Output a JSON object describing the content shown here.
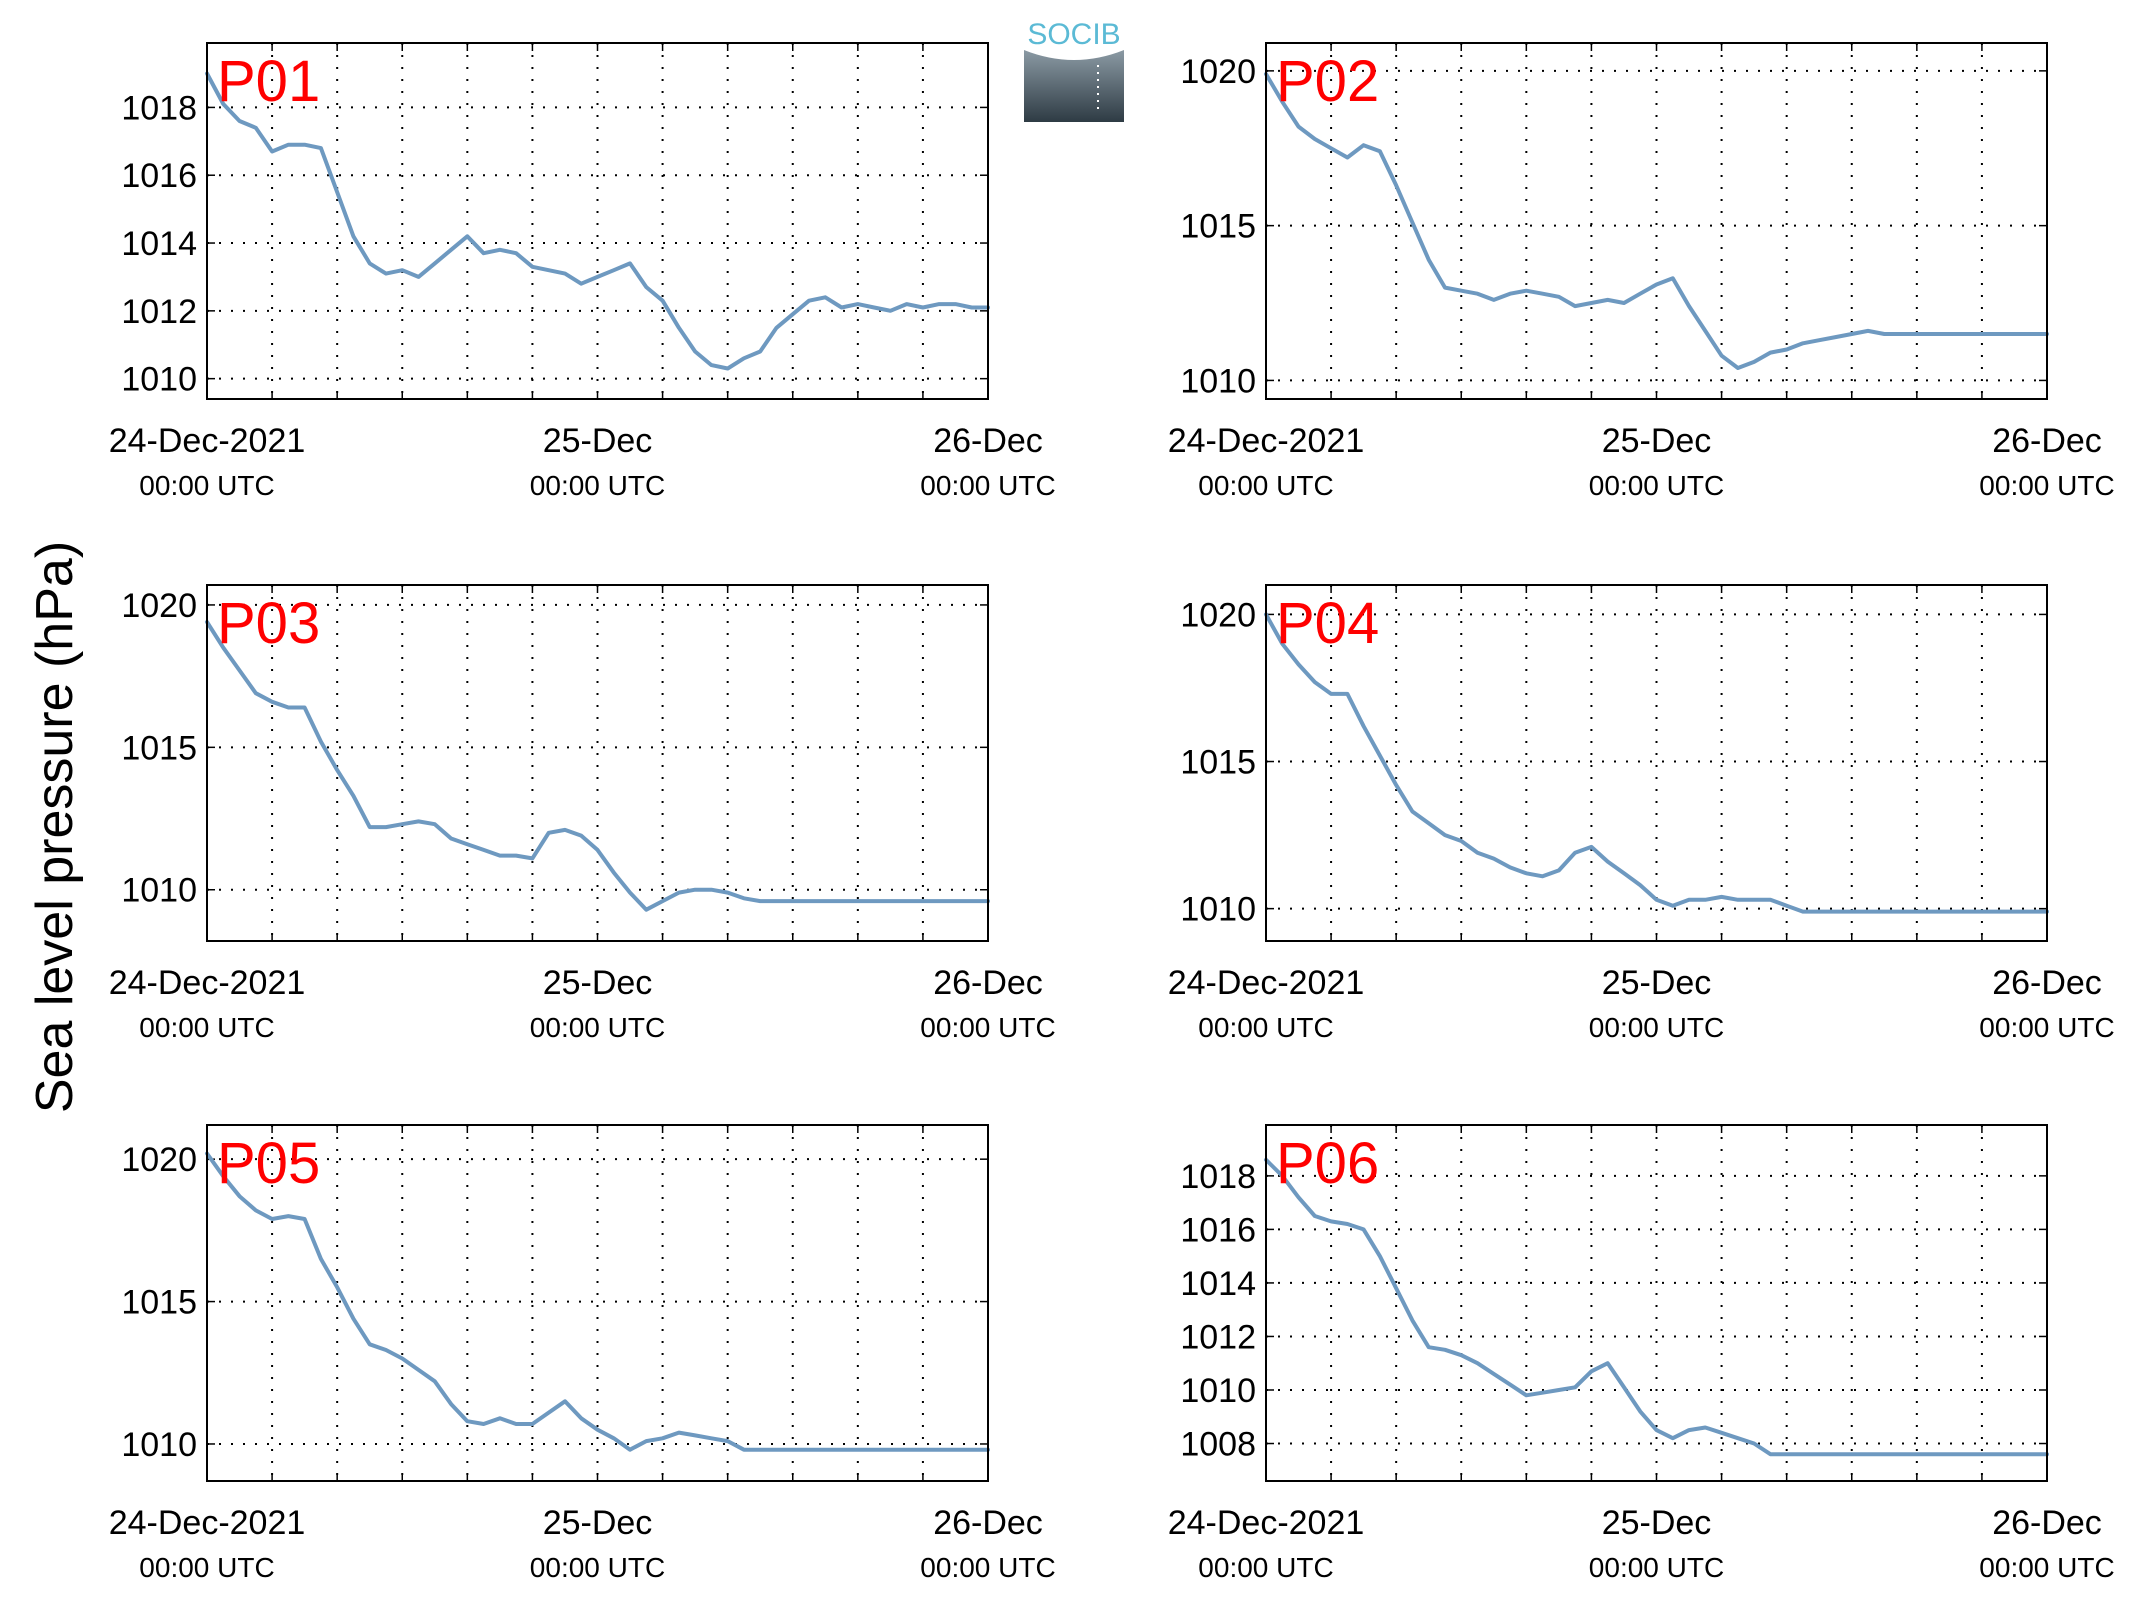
{
  "ylabel": "Sea level pressure (hPa)",
  "logo": {
    "text": "SOCIB",
    "color": "#5bbad5"
  },
  "colors": {
    "line": "#6e99c0",
    "label": "#ff0000",
    "grid": "#000000"
  },
  "chart_data": [
    {
      "type": "line",
      "title": "P01",
      "xticks": [
        {
          "top": "24-Dec-2021",
          "bottom": "00:00 UTC"
        },
        {
          "top": "25-Dec",
          "bottom": "00:00 UTC"
        },
        {
          "top": "26-Dec",
          "bottom": "00:00 UTC"
        }
      ],
      "xlim": [
        0,
        48
      ],
      "ylim": [
        1009.4,
        1019.9
      ],
      "yticks": [
        1010,
        1012,
        1014,
        1016,
        1018
      ],
      "x": [
        0,
        1,
        2,
        3,
        4,
        5,
        6,
        7,
        8,
        9,
        10,
        11,
        12,
        13,
        14,
        15,
        16,
        17,
        18,
        19,
        20,
        21,
        22,
        23,
        24,
        25,
        26,
        27,
        28,
        29,
        30,
        31,
        32,
        33,
        34,
        35,
        36,
        37,
        38,
        39,
        40,
        41,
        42,
        43,
        44,
        45,
        46,
        47,
        48
      ],
      "y": [
        1019.0,
        1018.1,
        1017.6,
        1017.4,
        1016.7,
        1016.9,
        1016.9,
        1016.8,
        1015.5,
        1014.2,
        1013.4,
        1013.1,
        1013.2,
        1013.0,
        1013.4,
        1013.8,
        1014.2,
        1013.7,
        1013.8,
        1013.7,
        1013.3,
        1013.2,
        1013.1,
        1012.8,
        1013.0,
        1013.2,
        1013.4,
        1012.7,
        1012.3,
        1011.5,
        1010.8,
        1010.4,
        1010.3,
        1010.6,
        1010.8,
        1011.5,
        1011.9,
        1012.3,
        1012.4,
        1012.1,
        1012.2,
        1012.1,
        1012.0,
        1012.2,
        1012.1,
        1012.2,
        1012.2,
        1012.1,
        1012.1
      ]
    },
    {
      "type": "line",
      "title": "P02",
      "xticks": [
        {
          "top": "24-Dec-2021",
          "bottom": "00:00 UTC"
        },
        {
          "top": "25-Dec",
          "bottom": "00:00 UTC"
        },
        {
          "top": "26-Dec",
          "bottom": "00:00 UTC"
        }
      ],
      "xlim": [
        0,
        48
      ],
      "ylim": [
        1009.4,
        1020.9
      ],
      "yticks": [
        1010,
        1015,
        1020
      ],
      "x": [
        0,
        1,
        2,
        3,
        4,
        5,
        6,
        7,
        8,
        9,
        10,
        11,
        12,
        13,
        14,
        15,
        16,
        17,
        18,
        19,
        20,
        21,
        22,
        23,
        24,
        25,
        26,
        27,
        28,
        29,
        30,
        31,
        32,
        33,
        34,
        35,
        36,
        37,
        38,
        39,
        40,
        41,
        42,
        43,
        44,
        45,
        46,
        47,
        48
      ],
      "y": [
        1019.9,
        1019.0,
        1018.2,
        1017.8,
        1017.5,
        1017.2,
        1017.6,
        1017.4,
        1016.3,
        1015.1,
        1013.9,
        1013.0,
        1012.9,
        1012.8,
        1012.6,
        1012.8,
        1012.9,
        1012.8,
        1012.7,
        1012.4,
        1012.5,
        1012.6,
        1012.5,
        1012.8,
        1013.1,
        1013.3,
        1012.4,
        1011.6,
        1010.8,
        1010.4,
        1010.6,
        1010.9,
        1011.0,
        1011.2,
        1011.3,
        1011.4,
        1011.5,
        1011.6,
        1011.5,
        1011.5,
        1011.5,
        1011.5,
        1011.5,
        1011.5,
        1011.5,
        1011.5,
        1011.5,
        1011.5,
        1011.5
      ]
    },
    {
      "type": "line",
      "title": "P03",
      "xticks": [
        {
          "top": "24-Dec-2021",
          "bottom": "00:00 UTC"
        },
        {
          "top": "25-Dec",
          "bottom": "00:00 UTC"
        },
        {
          "top": "26-Dec",
          "bottom": "00:00 UTC"
        }
      ],
      "xlim": [
        0,
        48
      ],
      "ylim": [
        1008.2,
        1020.7
      ],
      "yticks": [
        1010,
        1015,
        1020
      ],
      "x": [
        0,
        1,
        2,
        3,
        4,
        5,
        6,
        7,
        8,
        9,
        10,
        11,
        12,
        13,
        14,
        15,
        16,
        17,
        18,
        19,
        20,
        21,
        22,
        23,
        24,
        25,
        26,
        27,
        28,
        29,
        30,
        31,
        32,
        33,
        34,
        35,
        36,
        37,
        38,
        39,
        40,
        41,
        42,
        43,
        44,
        45,
        46,
        47,
        48
      ],
      "y": [
        1019.4,
        1018.5,
        1017.7,
        1016.9,
        1016.6,
        1016.4,
        1016.4,
        1015.2,
        1014.2,
        1013.3,
        1012.2,
        1012.2,
        1012.3,
        1012.4,
        1012.3,
        1011.8,
        1011.6,
        1011.4,
        1011.2,
        1011.2,
        1011.1,
        1012.0,
        1012.1,
        1011.9,
        1011.4,
        1010.6,
        1009.9,
        1009.3,
        1009.6,
        1009.9,
        1010.0,
        1010.0,
        1009.9,
        1009.7,
        1009.6,
        1009.6,
        1009.6,
        1009.6,
        1009.6,
        1009.6,
        1009.6,
        1009.6,
        1009.6,
        1009.6,
        1009.6,
        1009.6,
        1009.6,
        1009.6,
        1009.6
      ]
    },
    {
      "type": "line",
      "title": "P04",
      "xticks": [
        {
          "top": "24-Dec-2021",
          "bottom": "00:00 UTC"
        },
        {
          "top": "25-Dec",
          "bottom": "00:00 UTC"
        },
        {
          "top": "26-Dec",
          "bottom": "00:00 UTC"
        }
      ],
      "xlim": [
        0,
        48
      ],
      "ylim": [
        1008.9,
        1021.0
      ],
      "yticks": [
        1010,
        1015,
        1020
      ],
      "x": [
        0,
        1,
        2,
        3,
        4,
        5,
        6,
        7,
        8,
        9,
        10,
        11,
        12,
        13,
        14,
        15,
        16,
        17,
        18,
        19,
        20,
        21,
        22,
        23,
        24,
        25,
        26,
        27,
        28,
        29,
        30,
        31,
        32,
        33,
        34,
        35,
        36,
        37,
        38,
        39,
        40,
        41,
        42,
        43,
        44,
        45,
        46,
        47,
        48
      ],
      "y": [
        1020.0,
        1019.0,
        1018.3,
        1017.7,
        1017.3,
        1017.3,
        1016.2,
        1015.2,
        1014.2,
        1013.3,
        1012.9,
        1012.5,
        1012.3,
        1011.9,
        1011.7,
        1011.4,
        1011.2,
        1011.1,
        1011.3,
        1011.9,
        1012.1,
        1011.6,
        1011.2,
        1010.8,
        1010.3,
        1010.1,
        1010.3,
        1010.3,
        1010.4,
        1010.3,
        1010.3,
        1010.3,
        1010.1,
        1009.9,
        1009.9,
        1009.9,
        1009.9,
        1009.9,
        1009.9,
        1009.9,
        1009.9,
        1009.9,
        1009.9,
        1009.9,
        1009.9,
        1009.9,
        1009.9,
        1009.9,
        1009.9
      ]
    },
    {
      "type": "line",
      "title": "P05",
      "xticks": [
        {
          "top": "24-Dec-2021",
          "bottom": "00:00 UTC"
        },
        {
          "top": "25-Dec",
          "bottom": "00:00 UTC"
        },
        {
          "top": "26-Dec",
          "bottom": "00:00 UTC"
        }
      ],
      "xlim": [
        0,
        48
      ],
      "ylim": [
        1008.7,
        1021.2
      ],
      "yticks": [
        1010,
        1015,
        1020
      ],
      "x": [
        0,
        1,
        2,
        3,
        4,
        5,
        6,
        7,
        8,
        9,
        10,
        11,
        12,
        13,
        14,
        15,
        16,
        17,
        18,
        19,
        20,
        21,
        22,
        23,
        24,
        25,
        26,
        27,
        28,
        29,
        30,
        31,
        32,
        33,
        34,
        35,
        36,
        37,
        38,
        39,
        40,
        41,
        42,
        43,
        44,
        45,
        46,
        47,
        48
      ],
      "y": [
        1020.2,
        1019.4,
        1018.7,
        1018.2,
        1017.9,
        1018.0,
        1017.9,
        1016.5,
        1015.5,
        1014.4,
        1013.5,
        1013.3,
        1013.0,
        1012.6,
        1012.2,
        1011.4,
        1010.8,
        1010.7,
        1010.9,
        1010.7,
        1010.7,
        1011.1,
        1011.5,
        1010.9,
        1010.5,
        1010.2,
        1009.8,
        1010.1,
        1010.2,
        1010.4,
        1010.3,
        1010.2,
        1010.1,
        1009.8,
        1009.8,
        1009.8,
        1009.8,
        1009.8,
        1009.8,
        1009.8,
        1009.8,
        1009.8,
        1009.8,
        1009.8,
        1009.8,
        1009.8,
        1009.8,
        1009.8,
        1009.8
      ]
    },
    {
      "type": "line",
      "title": "P06",
      "xticks": [
        {
          "top": "24-Dec-2021",
          "bottom": "00:00 UTC"
        },
        {
          "top": "25-Dec",
          "bottom": "00:00 UTC"
        },
        {
          "top": "26-Dec",
          "bottom": "00:00 UTC"
        }
      ],
      "xlim": [
        0,
        48
      ],
      "ylim": [
        1006.6,
        1019.9
      ],
      "yticks": [
        1008,
        1010,
        1012,
        1014,
        1016,
        1018
      ],
      "x": [
        0,
        1,
        2,
        3,
        4,
        5,
        6,
        7,
        8,
        9,
        10,
        11,
        12,
        13,
        14,
        15,
        16,
        17,
        18,
        19,
        20,
        21,
        22,
        23,
        24,
        25,
        26,
        27,
        28,
        29,
        30,
        31,
        32,
        33,
        34,
        35,
        36,
        37,
        38,
        39,
        40,
        41,
        42,
        43,
        44,
        45,
        46,
        47,
        48
      ],
      "y": [
        1018.6,
        1018.0,
        1017.2,
        1016.5,
        1016.3,
        1016.2,
        1016.0,
        1015.0,
        1013.8,
        1012.6,
        1011.6,
        1011.5,
        1011.3,
        1011.0,
        1010.6,
        1010.2,
        1009.8,
        1009.9,
        1010.0,
        1010.1,
        1010.7,
        1011.0,
        1010.1,
        1009.2,
        1008.5,
        1008.2,
        1008.5,
        1008.6,
        1008.4,
        1008.2,
        1008.0,
        1007.6,
        1007.6,
        1007.6,
        1007.6,
        1007.6,
        1007.6,
        1007.6,
        1007.6,
        1007.6,
        1007.6,
        1007.6,
        1007.6,
        1007.6,
        1007.6,
        1007.6,
        1007.6,
        1007.6,
        1007.6
      ]
    }
  ]
}
